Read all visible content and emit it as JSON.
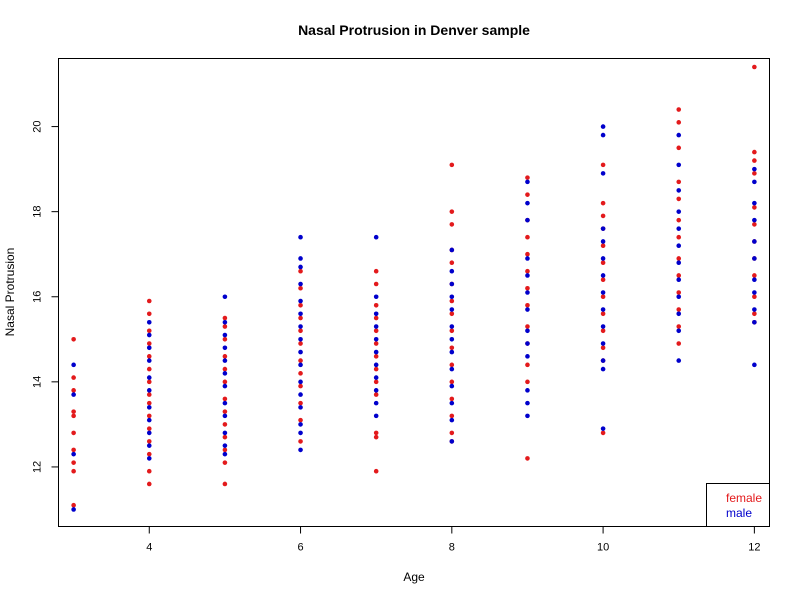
{
  "chart_data": {
    "type": "scatter",
    "title": "Nasal Protrusion in Denver sample",
    "xlabel": "Age",
    "ylabel": "Nasal Protrusion",
    "xlim": [
      2.8,
      12.2
    ],
    "ylim": [
      10.6,
      21.6
    ],
    "xticks": [
      4,
      6,
      8,
      10,
      12
    ],
    "yticks": [
      12,
      14,
      16,
      18,
      20
    ],
    "legend_position": "bottom-right",
    "series": [
      {
        "name": "female",
        "color": "#e31a1c",
        "points": [
          [
            3,
            15.0
          ],
          [
            3,
            14.1
          ],
          [
            3,
            13.8
          ],
          [
            3,
            13.3
          ],
          [
            3,
            13.2
          ],
          [
            3,
            12.8
          ],
          [
            3,
            12.4
          ],
          [
            3,
            12.1
          ],
          [
            3,
            11.9
          ],
          [
            3,
            11.1
          ],
          [
            4,
            15.9
          ],
          [
            4,
            15.6
          ],
          [
            4,
            15.2
          ],
          [
            4,
            14.9
          ],
          [
            4,
            14.6
          ],
          [
            4,
            14.3
          ],
          [
            4,
            14.0
          ],
          [
            4,
            13.7
          ],
          [
            4,
            13.5
          ],
          [
            4,
            13.2
          ],
          [
            4,
            12.9
          ],
          [
            4,
            12.6
          ],
          [
            4,
            12.3
          ],
          [
            4,
            11.9
          ],
          [
            4,
            11.6
          ],
          [
            5,
            15.5
          ],
          [
            5,
            15.3
          ],
          [
            5,
            15.0
          ],
          [
            5,
            14.6
          ],
          [
            5,
            14.3
          ],
          [
            5,
            14.0
          ],
          [
            5,
            13.6
          ],
          [
            5,
            13.3
          ],
          [
            5,
            13.0
          ],
          [
            5,
            12.7
          ],
          [
            5,
            12.4
          ],
          [
            5,
            12.1
          ],
          [
            5,
            11.6
          ],
          [
            6,
            16.6
          ],
          [
            6,
            16.2
          ],
          [
            6,
            15.8
          ],
          [
            6,
            15.5
          ],
          [
            6,
            15.2
          ],
          [
            6,
            14.9
          ],
          [
            6,
            14.5
          ],
          [
            6,
            14.2
          ],
          [
            6,
            13.9
          ],
          [
            6,
            13.5
          ],
          [
            6,
            13.1
          ],
          [
            6,
            12.6
          ],
          [
            7,
            16.6
          ],
          [
            7,
            16.3
          ],
          [
            7,
            15.8
          ],
          [
            7,
            15.5
          ],
          [
            7,
            15.2
          ],
          [
            7,
            14.9
          ],
          [
            7,
            14.6
          ],
          [
            7,
            14.3
          ],
          [
            7,
            14.0
          ],
          [
            7,
            13.7
          ],
          [
            7,
            12.8
          ],
          [
            7,
            12.7
          ],
          [
            7,
            11.9
          ],
          [
            8,
            19.1
          ],
          [
            8,
            18.0
          ],
          [
            8,
            17.7
          ],
          [
            8,
            17.1
          ],
          [
            8,
            16.8
          ],
          [
            8,
            16.3
          ],
          [
            8,
            15.9
          ],
          [
            8,
            15.6
          ],
          [
            8,
            15.2
          ],
          [
            8,
            14.8
          ],
          [
            8,
            14.4
          ],
          [
            8,
            14.0
          ],
          [
            8,
            13.6
          ],
          [
            8,
            13.2
          ],
          [
            8,
            12.8
          ],
          [
            8,
            12.6
          ],
          [
            9,
            18.8
          ],
          [
            9,
            18.4
          ],
          [
            9,
            17.8
          ],
          [
            9,
            17.4
          ],
          [
            9,
            17.0
          ],
          [
            9,
            16.6
          ],
          [
            9,
            16.2
          ],
          [
            9,
            15.8
          ],
          [
            9,
            15.3
          ],
          [
            9,
            14.9
          ],
          [
            9,
            14.4
          ],
          [
            9,
            14.0
          ],
          [
            9,
            12.2
          ],
          [
            10,
            19.1
          ],
          [
            10,
            18.2
          ],
          [
            10,
            17.9
          ],
          [
            10,
            17.6
          ],
          [
            10,
            17.2
          ],
          [
            10,
            16.8
          ],
          [
            10,
            16.4
          ],
          [
            10,
            16.0
          ],
          [
            10,
            15.6
          ],
          [
            10,
            15.2
          ],
          [
            10,
            14.8
          ],
          [
            10,
            14.5
          ],
          [
            10,
            12.8
          ],
          [
            11,
            20.4
          ],
          [
            11,
            20.1
          ],
          [
            11,
            19.5
          ],
          [
            11,
            18.7
          ],
          [
            11,
            18.3
          ],
          [
            11,
            17.8
          ],
          [
            11,
            17.4
          ],
          [
            11,
            16.9
          ],
          [
            11,
            16.5
          ],
          [
            11,
            16.1
          ],
          [
            11,
            15.7
          ],
          [
            11,
            15.3
          ],
          [
            11,
            14.9
          ],
          [
            12,
            21.4
          ],
          [
            12,
            19.4
          ],
          [
            12,
            19.2
          ],
          [
            12,
            18.9
          ],
          [
            12,
            18.1
          ],
          [
            12,
            17.7
          ],
          [
            12,
            17.3
          ],
          [
            12,
            16.9
          ],
          [
            12,
            16.5
          ],
          [
            12,
            16.0
          ],
          [
            12,
            15.6
          ],
          [
            12,
            15.4
          ]
        ]
      },
      {
        "name": "male",
        "color": "#0000cc",
        "points": [
          [
            3,
            14.4
          ],
          [
            3,
            13.7
          ],
          [
            3,
            12.3
          ],
          [
            3,
            11.0
          ],
          [
            4,
            15.4
          ],
          [
            4,
            15.1
          ],
          [
            4,
            14.8
          ],
          [
            4,
            14.5
          ],
          [
            4,
            14.1
          ],
          [
            4,
            13.8
          ],
          [
            4,
            13.4
          ],
          [
            4,
            13.1
          ],
          [
            4,
            12.8
          ],
          [
            4,
            12.5
          ],
          [
            4,
            12.2
          ],
          [
            5,
            16.0
          ],
          [
            5,
            15.4
          ],
          [
            5,
            15.1
          ],
          [
            5,
            14.8
          ],
          [
            5,
            14.5
          ],
          [
            5,
            14.2
          ],
          [
            5,
            13.9
          ],
          [
            5,
            13.5
          ],
          [
            5,
            13.2
          ],
          [
            5,
            12.8
          ],
          [
            5,
            12.5
          ],
          [
            5,
            12.3
          ],
          [
            6,
            17.4
          ],
          [
            6,
            16.9
          ],
          [
            6,
            16.7
          ],
          [
            6,
            16.3
          ],
          [
            6,
            15.9
          ],
          [
            6,
            15.6
          ],
          [
            6,
            15.3
          ],
          [
            6,
            15.0
          ],
          [
            6,
            14.7
          ],
          [
            6,
            14.4
          ],
          [
            6,
            14.0
          ],
          [
            6,
            13.7
          ],
          [
            6,
            13.4
          ],
          [
            6,
            13.0
          ],
          [
            6,
            12.8
          ],
          [
            6,
            12.4
          ],
          [
            7,
            17.4
          ],
          [
            7,
            16.0
          ],
          [
            7,
            15.6
          ],
          [
            7,
            15.3
          ],
          [
            7,
            15.0
          ],
          [
            7,
            14.7
          ],
          [
            7,
            14.4
          ],
          [
            7,
            14.1
          ],
          [
            7,
            13.8
          ],
          [
            7,
            13.5
          ],
          [
            7,
            13.2
          ],
          [
            8,
            17.1
          ],
          [
            8,
            16.6
          ],
          [
            8,
            16.3
          ],
          [
            8,
            16.0
          ],
          [
            8,
            15.7
          ],
          [
            8,
            15.3
          ],
          [
            8,
            15.0
          ],
          [
            8,
            14.7
          ],
          [
            8,
            14.3
          ],
          [
            8,
            13.9
          ],
          [
            8,
            13.5
          ],
          [
            8,
            13.1
          ],
          [
            8,
            12.6
          ],
          [
            9,
            18.7
          ],
          [
            9,
            18.2
          ],
          [
            9,
            17.8
          ],
          [
            9,
            16.9
          ],
          [
            9,
            16.5
          ],
          [
            9,
            16.1
          ],
          [
            9,
            15.7
          ],
          [
            9,
            15.2
          ],
          [
            9,
            14.9
          ],
          [
            9,
            14.6
          ],
          [
            9,
            13.8
          ],
          [
            9,
            13.5
          ],
          [
            9,
            13.2
          ],
          [
            10,
            20.0
          ],
          [
            10,
            19.8
          ],
          [
            10,
            18.9
          ],
          [
            10,
            17.6
          ],
          [
            10,
            17.3
          ],
          [
            10,
            16.9
          ],
          [
            10,
            16.5
          ],
          [
            10,
            16.1
          ],
          [
            10,
            15.7
          ],
          [
            10,
            15.3
          ],
          [
            10,
            14.9
          ],
          [
            10,
            14.5
          ],
          [
            10,
            14.3
          ],
          [
            10,
            12.9
          ],
          [
            11,
            19.8
          ],
          [
            11,
            19.1
          ],
          [
            11,
            18.5
          ],
          [
            11,
            18.0
          ],
          [
            11,
            17.6
          ],
          [
            11,
            17.2
          ],
          [
            11,
            16.8
          ],
          [
            11,
            16.4
          ],
          [
            11,
            16.0
          ],
          [
            11,
            15.6
          ],
          [
            11,
            15.2
          ],
          [
            11,
            14.5
          ],
          [
            12,
            19.0
          ],
          [
            12,
            18.7
          ],
          [
            12,
            18.2
          ],
          [
            12,
            17.8
          ],
          [
            12,
            17.3
          ],
          [
            12,
            16.9
          ],
          [
            12,
            16.4
          ],
          [
            12,
            16.1
          ],
          [
            12,
            15.7
          ],
          [
            12,
            15.4
          ],
          [
            12,
            14.4
          ]
        ]
      }
    ]
  }
}
